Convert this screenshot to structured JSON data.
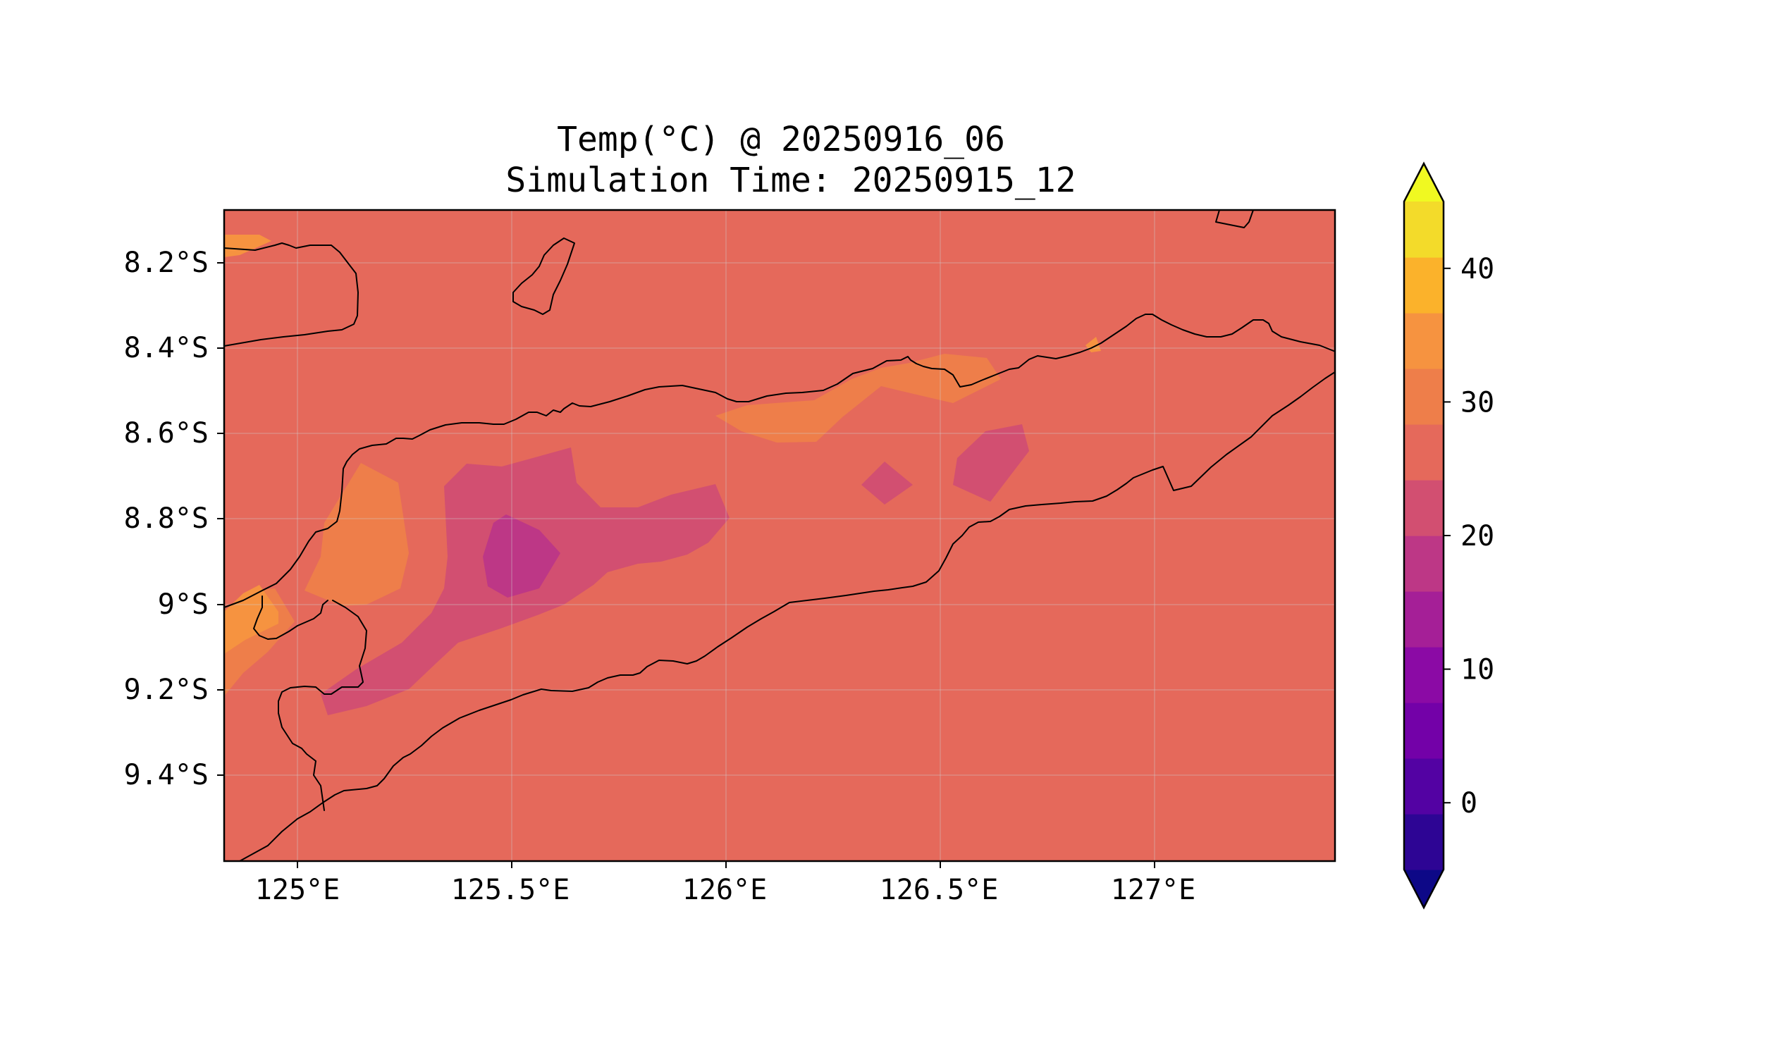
{
  "title_line1": "Temp(°C) @ 20250916_06",
  "title_line2": "Simulation Time: 20250915_12",
  "colors": {
    "level_fills": [
      "#0d0887",
      "#2d0594",
      "#5302a3",
      "#7301a8",
      "#8b0aa5",
      "#a51f97",
      "#bd3786",
      "#d24f71",
      "#e5695b",
      "#ee7e4a",
      "#f69340",
      "#fbb22b",
      "#f3db2a",
      "#f0f921"
    ],
    "coastline": "#000000"
  },
  "chart_data": {
    "type": "filled-contour-map",
    "variable": "Temp(°C)",
    "x_ticks": [
      "125°E",
      "125.5°E",
      "126°E",
      "126.5°E",
      "127°E"
    ],
    "y_ticks": [
      "8.2°S",
      "8.4°S",
      "8.6°S",
      "8.8°S",
      "9°S",
      "9.2°S",
      "9.4°S"
    ],
    "xlim": [
      124.83,
      127.42
    ],
    "ylim": [
      -9.6,
      -8.08
    ],
    "grid": true,
    "colorbar": {
      "orientation": "vertical",
      "placement": "right",
      "ticks": [
        "0",
        "10",
        "20",
        "30",
        "40"
      ],
      "levels": [
        -5,
        0,
        5,
        10,
        15,
        20,
        25,
        30,
        35,
        40,
        45
      ],
      "extend": "both",
      "colormap": "plasma"
    },
    "field_summary": [
      {
        "region": "background and most of land",
        "range": [
          25,
          30
        ]
      },
      {
        "region": "central Timor highlands",
        "range": [
          20,
          25
        ]
      },
      {
        "region": "core near 125.5°E 8.88°S",
        "range": [
          15,
          20
        ]
      },
      {
        "region": "west coast 125.1-125.2°E",
        "range": [
          30,
          35
        ]
      },
      {
        "region": "north coast 126.0-126.6°E",
        "range": [
          30,
          35
        ]
      },
      {
        "region": "small patches near 124.9°E 8.15°S and 124.9°E 9.05°S",
        "range": [
          35,
          40
        ]
      }
    ]
  }
}
